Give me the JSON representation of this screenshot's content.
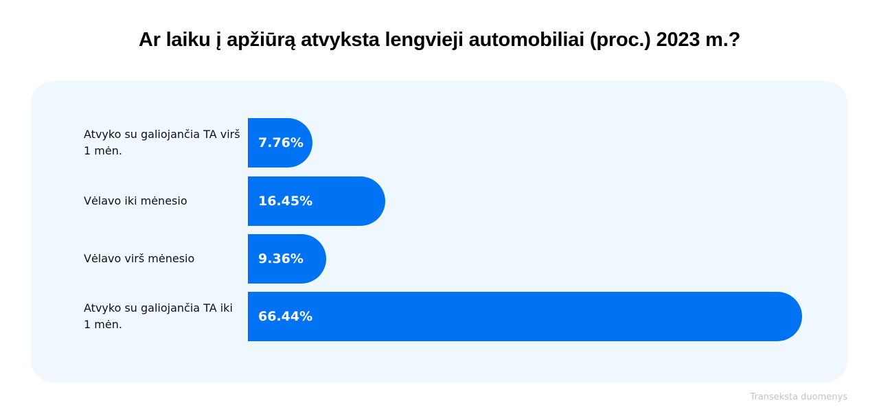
{
  "title": "Ar laiku į apžiūrą atvyksta lengvieji automobiliai (proc.) 2023 m.?",
  "source": "Transeksta duomenys",
  "colors": {
    "bar": "#0073f5",
    "panel": "#f0f8ff",
    "label_text": "#111111",
    "source_text": "#c4c4c4"
  },
  "bars": [
    {
      "label": "Atvyko su galiojančia TA virš 1 mėn.",
      "value": 7.76,
      "display": "7.76%"
    },
    {
      "label": "Vėlavo iki mėnesio",
      "value": 16.45,
      "display": "16.45%"
    },
    {
      "label": "Vėlavo virš mėnesio",
      "value": 9.36,
      "display": "9.36%"
    },
    {
      "label": "Atvyko su galiojančia TA iki 1 mėn.",
      "value": 66.44,
      "display": "66.44%"
    }
  ],
  "chart_data": {
    "type": "bar",
    "orientation": "horizontal",
    "title": "Ar laiku į apžiūrą atvyksta lengvieji automobiliai (proc.) 2023 m.?",
    "categories": [
      "Atvyko su galiojančia TA virš 1 mėn.",
      "Vėlavo iki mėnesio",
      "Vėlavo virš mėnesio",
      "Atvyko su galiojančia TA iki 1 mėn."
    ],
    "values": [
      7.76,
      16.45,
      9.36,
      66.44
    ],
    "data_labels": [
      "7.76%",
      "16.45%",
      "9.36%",
      "66.44%"
    ],
    "xlabel": "",
    "ylabel": "",
    "unit": "%",
    "grid": false,
    "legend": null,
    "annotations": [
      "Transeksta duomenys"
    ]
  }
}
